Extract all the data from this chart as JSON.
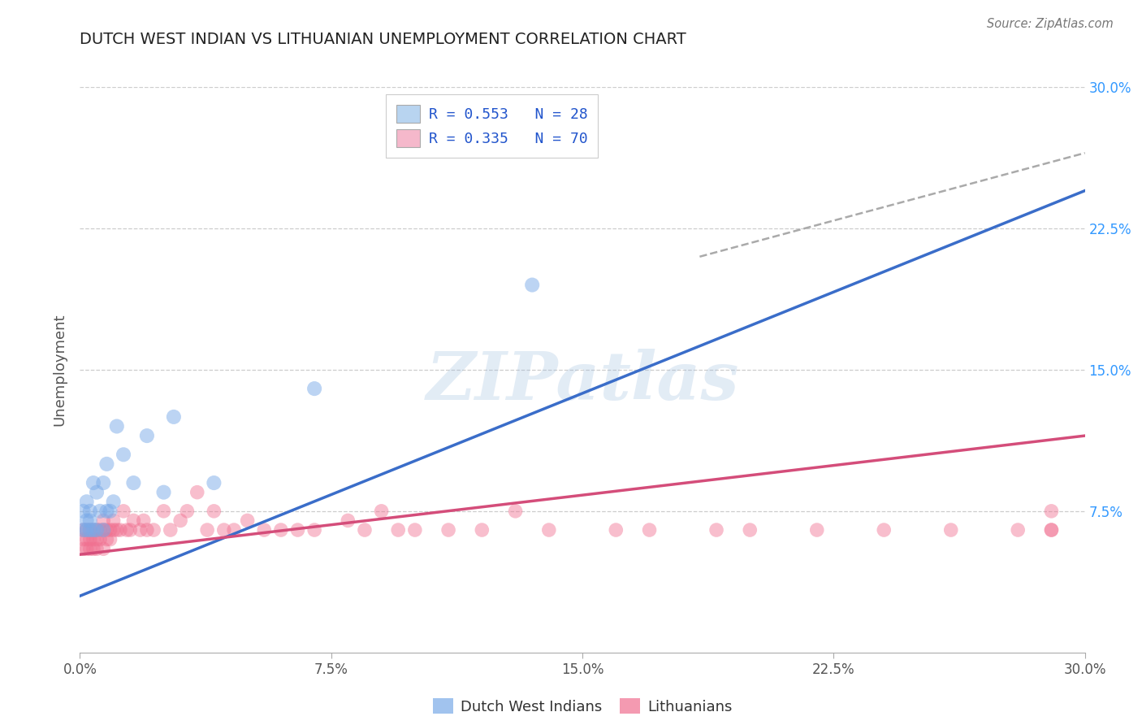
{
  "title": "DUTCH WEST INDIAN VS LITHUANIAN UNEMPLOYMENT CORRELATION CHART",
  "source_text": "Source: ZipAtlas.com",
  "ylabel": "Unemployment",
  "watermark": "ZIPatlas",
  "legend1_label": "R = 0.553   N = 28",
  "legend2_label": "R = 0.335   N = 70",
  "legend1_color": "#b8d4f0",
  "legend2_color": "#f5b8cb",
  "blue_line_color": "#3a6dc9",
  "pink_line_color": "#d44d7a",
  "blue_dot_color": "#7aaae8",
  "pink_dot_color": "#f07090",
  "dashed_line_color": "#aaaaaa",
  "background_color": "#ffffff",
  "grid_color": "#c8c8c8",
  "title_color": "#222222",
  "right_tick_color": "#3399ff",
  "bottom_tick_color": "#555555",
  "xlim": [
    0.0,
    0.3
  ],
  "ylim": [
    0.0,
    0.3
  ],
  "xticks": [
    0.0,
    0.075,
    0.15,
    0.225,
    0.3
  ],
  "yticks": [
    0.075,
    0.15,
    0.225,
    0.3
  ],
  "xtick_labels": [
    "0.0%",
    "7.5%",
    "15.0%",
    "22.5%",
    "30.0%"
  ],
  "ytick_labels_right": [
    "7.5%",
    "15.0%",
    "22.5%",
    "30.0%"
  ],
  "bottom_legend_labels": [
    "Dutch West Indians",
    "Lithuanians"
  ],
  "blue_dots_x": [
    0.001,
    0.001,
    0.002,
    0.002,
    0.002,
    0.003,
    0.003,
    0.003,
    0.004,
    0.004,
    0.005,
    0.005,
    0.006,
    0.007,
    0.007,
    0.008,
    0.008,
    0.009,
    0.01,
    0.011,
    0.013,
    0.016,
    0.02,
    0.025,
    0.028,
    0.04,
    0.07,
    0.135
  ],
  "blue_dots_y": [
    0.065,
    0.075,
    0.065,
    0.07,
    0.08,
    0.065,
    0.07,
    0.075,
    0.065,
    0.09,
    0.065,
    0.085,
    0.075,
    0.065,
    0.09,
    0.075,
    0.1,
    0.075,
    0.08,
    0.12,
    0.105,
    0.09,
    0.115,
    0.085,
    0.125,
    0.09,
    0.14,
    0.195
  ],
  "pink_dots_x": [
    0.001,
    0.001,
    0.001,
    0.002,
    0.002,
    0.002,
    0.003,
    0.003,
    0.003,
    0.004,
    0.004,
    0.004,
    0.005,
    0.005,
    0.005,
    0.006,
    0.006,
    0.007,
    0.007,
    0.007,
    0.008,
    0.008,
    0.009,
    0.009,
    0.01,
    0.01,
    0.011,
    0.012,
    0.013,
    0.014,
    0.015,
    0.016,
    0.018,
    0.019,
    0.02,
    0.022,
    0.025,
    0.027,
    0.03,
    0.032,
    0.035,
    0.038,
    0.04,
    0.043,
    0.046,
    0.05,
    0.055,
    0.06,
    0.065,
    0.07,
    0.08,
    0.085,
    0.09,
    0.095,
    0.1,
    0.11,
    0.12,
    0.13,
    0.14,
    0.16,
    0.17,
    0.19,
    0.2,
    0.22,
    0.24,
    0.26,
    0.28,
    0.29,
    0.29,
    0.29
  ],
  "pink_dots_y": [
    0.055,
    0.06,
    0.065,
    0.055,
    0.06,
    0.065,
    0.055,
    0.06,
    0.065,
    0.055,
    0.06,
    0.065,
    0.055,
    0.06,
    0.065,
    0.06,
    0.065,
    0.055,
    0.065,
    0.07,
    0.06,
    0.065,
    0.06,
    0.065,
    0.065,
    0.07,
    0.065,
    0.065,
    0.075,
    0.065,
    0.065,
    0.07,
    0.065,
    0.07,
    0.065,
    0.065,
    0.075,
    0.065,
    0.07,
    0.075,
    0.085,
    0.065,
    0.075,
    0.065,
    0.065,
    0.07,
    0.065,
    0.065,
    0.065,
    0.065,
    0.07,
    0.065,
    0.075,
    0.065,
    0.065,
    0.065,
    0.065,
    0.075,
    0.065,
    0.065,
    0.065,
    0.065,
    0.065,
    0.065,
    0.065,
    0.065,
    0.065,
    0.065,
    0.065,
    0.075
  ],
  "blue_line_x0": 0.0,
  "blue_line_x1": 0.3,
  "blue_line_y0": 0.03,
  "blue_line_y1": 0.245,
  "pink_line_x0": 0.0,
  "pink_line_x1": 0.3,
  "pink_line_y0": 0.052,
  "pink_line_y1": 0.115,
  "dash_line_x0": 0.185,
  "dash_line_x1": 0.3,
  "dash_line_y0": 0.21,
  "dash_line_y1": 0.265
}
